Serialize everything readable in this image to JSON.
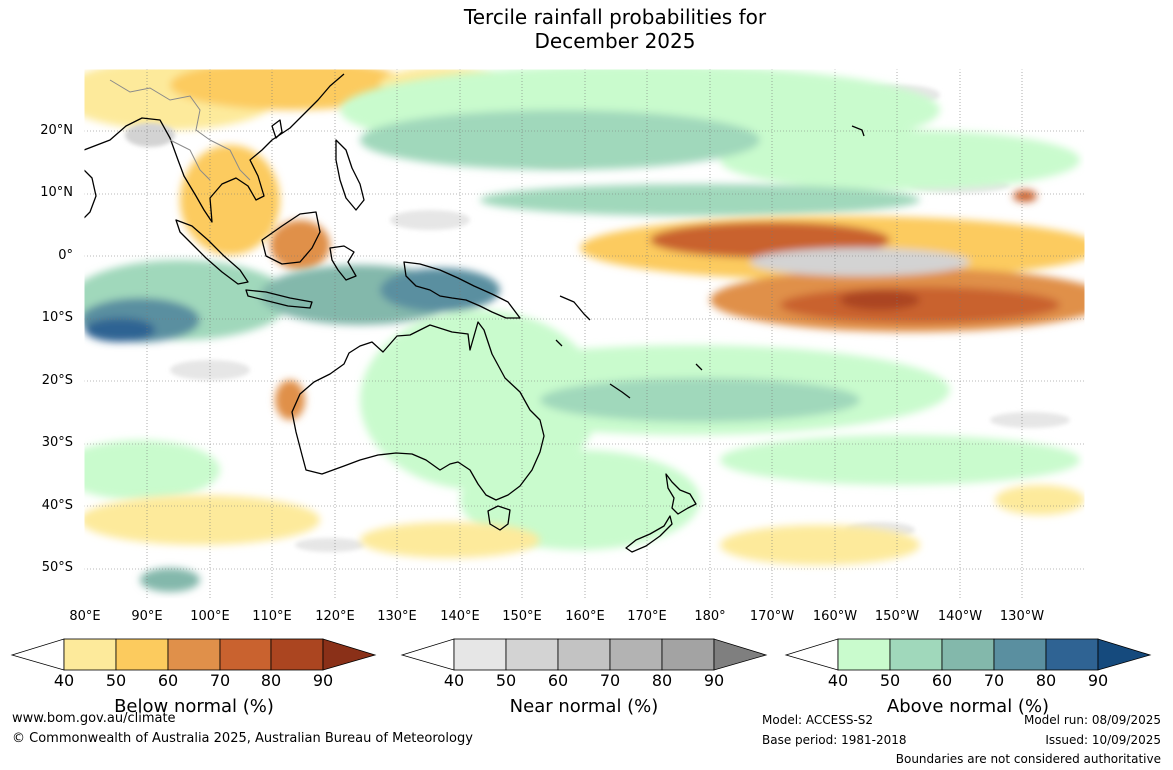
{
  "title": {
    "line1": "Tercile rainfall probabilities for",
    "line2": "December 2025"
  },
  "map": {
    "lat_labels": [
      "20°N",
      "10°N",
      "0°",
      "10°S",
      "20°S",
      "30°S",
      "40°S",
      "50°S"
    ],
    "lon_labels": [
      "80°E",
      "90°E",
      "100°E",
      "110°E",
      "120°E",
      "130°E",
      "140°E",
      "150°E",
      "160°E",
      "170°E",
      "180°",
      "170°W",
      "160°W",
      "150°W",
      "140°W",
      "130°W"
    ]
  },
  "colorbars": [
    {
      "title": "Below normal (%)",
      "ticks": [
        "40",
        "50",
        "60",
        "70",
        "80",
        "90"
      ],
      "colors": [
        "#ffffff",
        "#fdea9b",
        "#fccb5e",
        "#e0904a",
        "#c9622f",
        "#ab4520",
        "#8a3018"
      ]
    },
    {
      "title": "Near normal (%)",
      "ticks": [
        "40",
        "50",
        "60",
        "70",
        "80",
        "90"
      ],
      "colors": [
        "#ffffff",
        "#e6e6e6",
        "#d3d3d3",
        "#c3c3c3",
        "#b3b3b3",
        "#a3a3a3",
        "#7f7f7f"
      ]
    },
    {
      "title": "Above normal (%)",
      "ticks": [
        "40",
        "50",
        "60",
        "70",
        "80",
        "90"
      ],
      "colors": [
        "#ffffff",
        "#c9fbcd",
        "#a0d8bb",
        "#83b8ab",
        "#5a8fa0",
        "#2f6393",
        "#154a7d"
      ]
    }
  ],
  "footer": {
    "website": "www.bom.gov.au/climate",
    "copyright": "© Commonwealth of Australia 2025, Australian Bureau of Meteorology",
    "model": "Model: ACCESS-S2",
    "base_period": "Base period: 1981-2018",
    "model_run": "Model run: 08/09/2025",
    "issued": "Issued: 10/09/2025",
    "disclaimer": "Boundaries are not considered authoritative"
  }
}
